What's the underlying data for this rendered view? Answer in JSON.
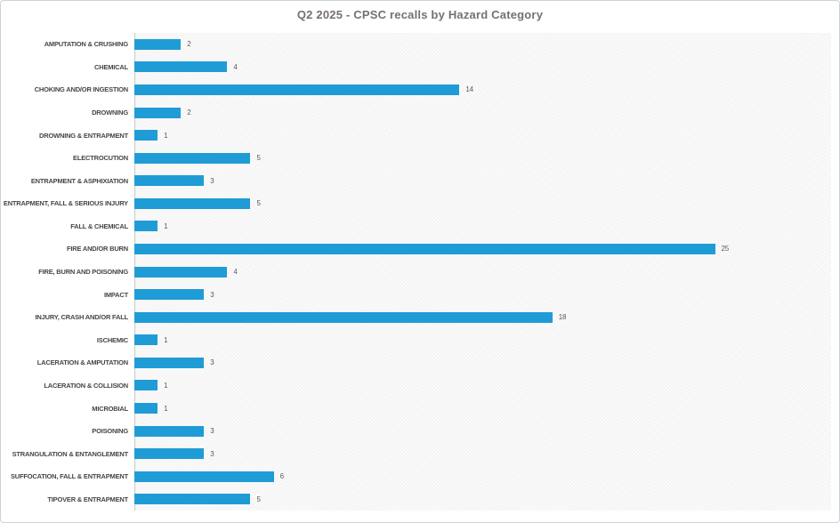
{
  "chart_data": {
    "type": "bar",
    "orientation": "horizontal",
    "title": "Q2 2025 - CPSC recalls by Hazard Category",
    "categories": [
      "AMPUTATION & CRUSHING",
      "CHEMICAL",
      "CHOKING AND/OR INGESTION",
      "DROWNING",
      "DROWNING & ENTRAPMENT",
      "ELECTROCUTION",
      "ENTRAPMENT & ASPHIXIATION",
      "ENTRAPMENT, FALL & SERIOUS INJURY",
      "FALL & CHEMICAL",
      "FIRE AND/OR BURN",
      "FIRE, BURN AND POISONING",
      "IMPACT",
      "INJURY, CRASH AND/OR FALL",
      "ISCHEMIC",
      "LACERATION & AMPUTATION",
      "LACERATION & COLLISION",
      "MICROBIAL",
      "POISONING",
      "STRANGULATION & ENTANGLEMENT",
      "SUFFOCATION, FALL & ENTRAPMENT",
      "TIPOVER & ENTRAPMENT"
    ],
    "values": [
      2,
      4,
      14,
      2,
      1,
      5,
      3,
      5,
      1,
      25,
      4,
      3,
      18,
      1,
      3,
      1,
      1,
      3,
      3,
      6,
      5
    ],
    "xlabel": "",
    "ylabel": "",
    "xlim": [
      0,
      30
    ],
    "grid": false,
    "legend": false,
    "data_labels": true,
    "bar_color": "#1f9cd6",
    "title_color": "#767171",
    "label_color": "#464646",
    "value_label_color": "#595959",
    "plot_background_color": "#f3f3f3"
  }
}
